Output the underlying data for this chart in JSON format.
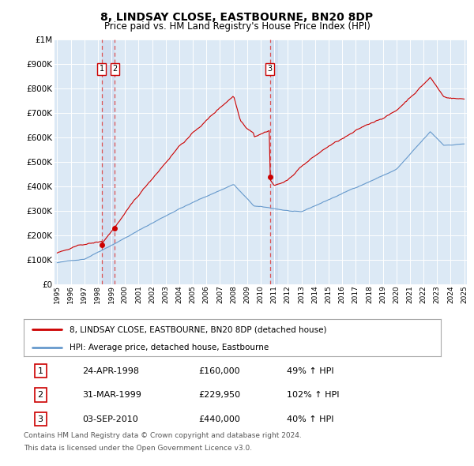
{
  "title": "8, LINDSAY CLOSE, EASTBOURNE, BN20 8DP",
  "subtitle": "Price paid vs. HM Land Registry's House Price Index (HPI)",
  "legend_line1": "8, LINDSAY CLOSE, EASTBOURNE, BN20 8DP (detached house)",
  "legend_line2": "HPI: Average price, detached house, Eastbourne",
  "footer_line1": "Contains HM Land Registry data © Crown copyright and database right 2024.",
  "footer_line2": "This data is licensed under the Open Government Licence v3.0.",
  "sales": [
    {
      "num": 1,
      "date": "24-APR-1998",
      "price": "£160,000",
      "pct": "49% ↑ HPI",
      "year": 1998.29
    },
    {
      "num": 2,
      "date": "31-MAR-1999",
      "price": "£229,950",
      "pct": "102% ↑ HPI",
      "year": 1999.25
    },
    {
      "num": 3,
      "date": "03-SEP-2010",
      "price": "£440,000",
      "pct": "40% ↑ HPI",
      "year": 2010.67
    }
  ],
  "sale_values": [
    160000,
    229950,
    440000
  ],
  "sale_years": [
    1998.29,
    1999.25,
    2010.67
  ],
  "ylim": [
    0,
    1000000
  ],
  "xlim": [
    1994.8,
    2025.2
  ],
  "background_color": "#dce9f5",
  "red_color": "#cc0000",
  "blue_color": "#6699cc",
  "dashed_color": "#cc6666",
  "shade_color": "#ccdaee",
  "grid_color": "#ffffff",
  "row_data": [
    [
      1,
      "24-APR-1998",
      "£160,000",
      "49% ↑ HPI"
    ],
    [
      2,
      "31-MAR-1999",
      "£229,950",
      "102% ↑ HPI"
    ],
    [
      3,
      "03-SEP-2010",
      "£440,000",
      "40% ↑ HPI"
    ]
  ]
}
